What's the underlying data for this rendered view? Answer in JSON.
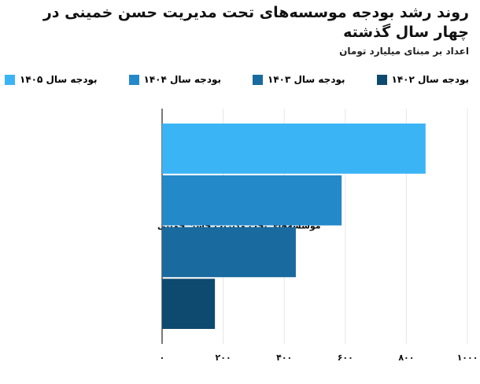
{
  "chart_data": {
    "type": "bar",
    "orientation": "horizontal",
    "title": "روند رشد بودجه موسسه‌های تحت مدیریت حسن خمینی در چهار سال گذشته",
    "subtitle": "اعداد بر مبنای میلیارد تومان",
    "categories": [
      "موسسه‌های تحت مدیریت حسن خمینی"
    ],
    "series": [
      {
        "name": "بودجه سال ۱۴۰۲",
        "color": "#0e4a6f",
        "values": [
          173
        ]
      },
      {
        "name": "بودجه سال ۱۴۰۳",
        "color": "#196a9e",
        "values": [
          438
        ]
      },
      {
        "name": "بودجه سال ۱۴۰۴",
        "color": "#2489c9",
        "values": [
          588
        ]
      },
      {
        "name": "بودجه سال ۱۴۰۵",
        "color": "#3bb4f6",
        "values": [
          863
        ]
      }
    ],
    "xlim": [
      0,
      1000
    ],
    "xticks": [
      {
        "value": 0,
        "label": "۰"
      },
      {
        "value": 200,
        "label": "۲۰۰"
      },
      {
        "value": 400,
        "label": "۴۰۰"
      },
      {
        "value": 600,
        "label": "۶۰۰"
      },
      {
        "value": 800,
        "label": "۸۰۰"
      },
      {
        "value": 1000,
        "label": "۱۰۰۰"
      }
    ],
    "grid": true
  }
}
